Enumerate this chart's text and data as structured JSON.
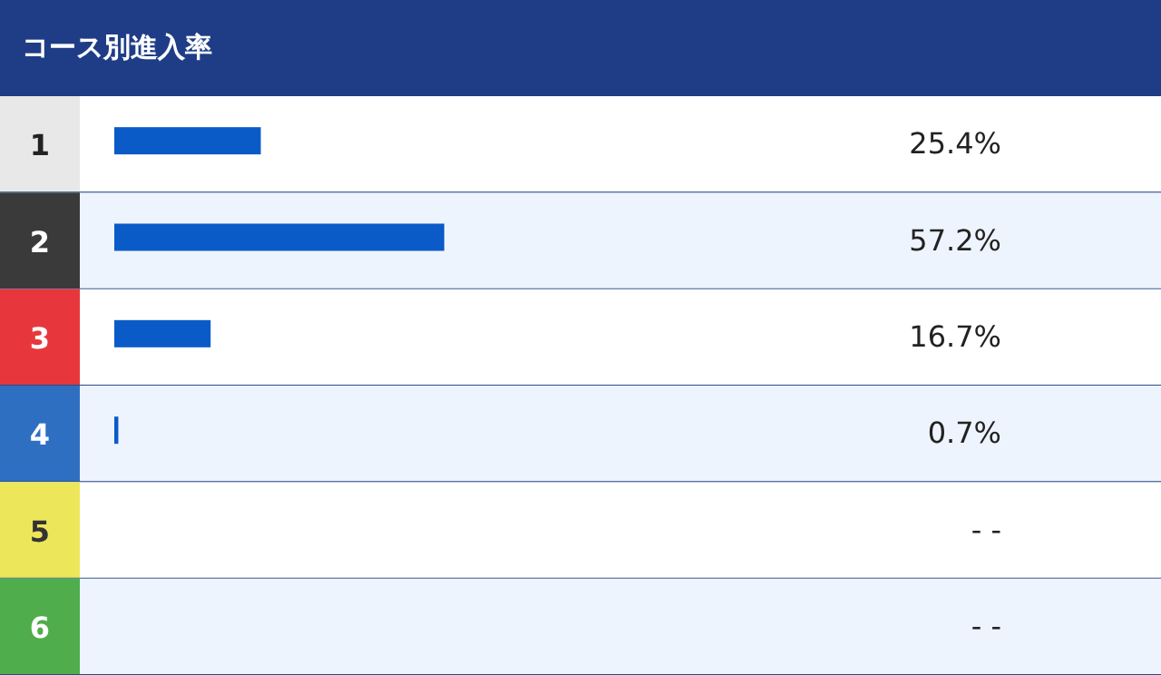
{
  "chart_data": {
    "type": "bar",
    "orientation": "horizontal",
    "title": "コース別進入率",
    "categories": [
      "1",
      "2",
      "3",
      "4",
      "5",
      "6"
    ],
    "values": [
      25.4,
      57.2,
      16.7,
      0.7,
      null,
      null
    ],
    "value_labels": [
      "25.4%",
      "57.2%",
      "16.7%",
      "0.7%",
      "- -",
      "- -"
    ],
    "color": "#0a5bc8"
  }
}
